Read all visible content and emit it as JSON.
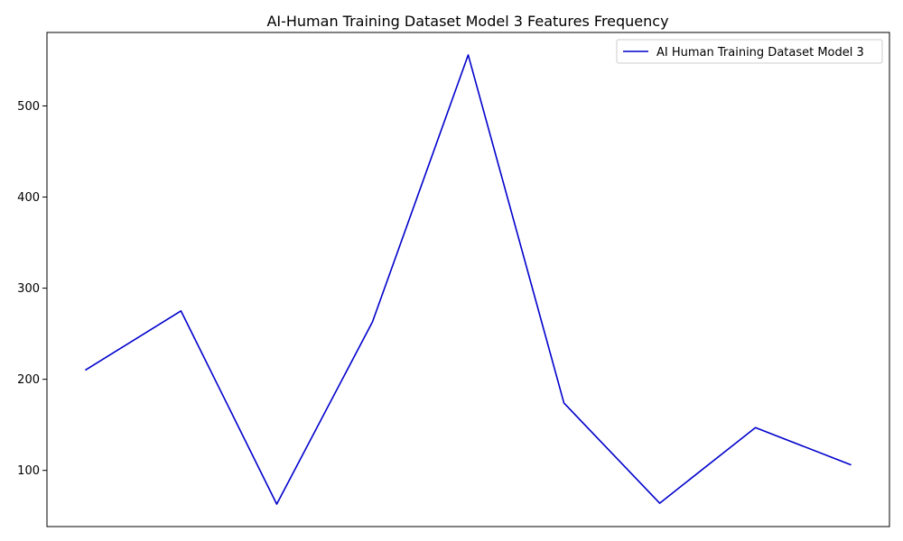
{
  "chart_data": {
    "type": "line",
    "title": "AI-Human Training Dataset Model 3 Features Frequency",
    "xlabel": "",
    "ylabel": "",
    "x": [
      0,
      1,
      2,
      3,
      4,
      5,
      6,
      7,
      8
    ],
    "series": [
      {
        "name": "AI Human Training Dataset Model 3",
        "color": "#0000cc",
        "values": [
          210,
          275,
          63,
          263,
          556,
          174,
          64,
          147,
          106
        ]
      }
    ],
    "ylim": [
      38.35,
      580.65
    ],
    "yticks": [
      100,
      200,
      300,
      400,
      500
    ],
    "xticks_visible": false,
    "grid": false,
    "legend": "top-right"
  }
}
